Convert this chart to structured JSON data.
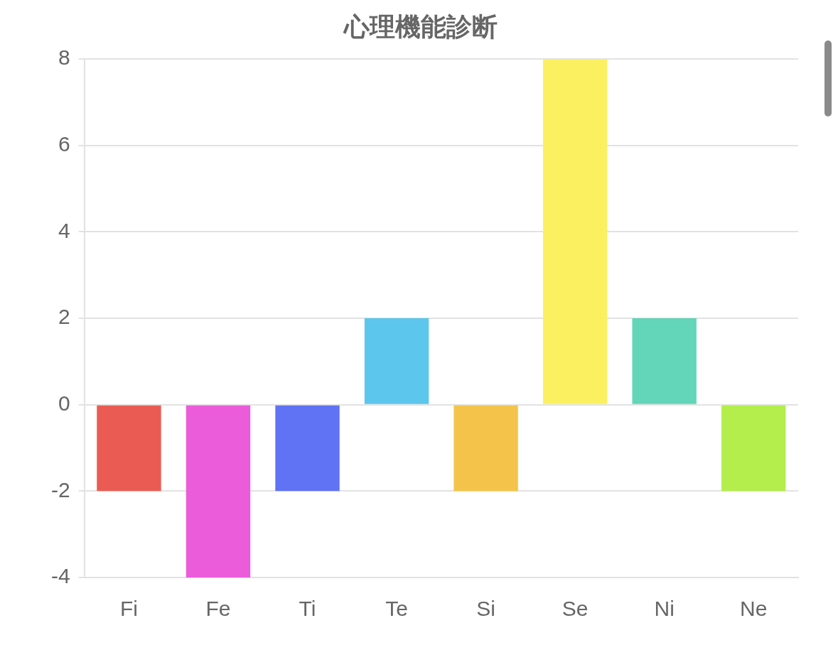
{
  "chart_data": {
    "type": "bar",
    "title": "心理機能診断",
    "categories": [
      "Fi",
      "Fe",
      "Ti",
      "Te",
      "Si",
      "Se",
      "Ni",
      "Ne"
    ],
    "values": [
      -2,
      -4,
      -2,
      2,
      -2,
      8,
      2,
      -2
    ],
    "colors": [
      "#ea5c53",
      "#ea5cd9",
      "#6073f5",
      "#5cc6ec",
      "#f4c44a",
      "#fbf060",
      "#63d5b8",
      "#b3ee4c"
    ],
    "ylim": [
      -4,
      8
    ],
    "yticks": [
      -4,
      -2,
      0,
      2,
      4,
      6,
      8
    ],
    "grid": "y",
    "legend": false
  }
}
